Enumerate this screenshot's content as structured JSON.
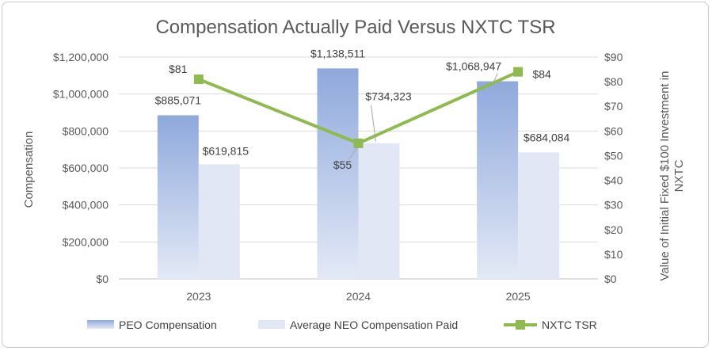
{
  "chart_data": {
    "type": "bar",
    "title": "Compensation Actually Paid Versus NXTC TSR",
    "categories": [
      "2023",
      "2024",
      "2025"
    ],
    "ylabel": "Compensation",
    "y2label_lines": [
      "Value of Initial Fixed $100 Investment in",
      "NXTC"
    ],
    "ylim": [
      0,
      1200000
    ],
    "y2lim": [
      0,
      90
    ],
    "yticks": [
      0,
      200000,
      400000,
      600000,
      800000,
      1000000,
      1200000
    ],
    "yticklabels": [
      "$0",
      "$200,000",
      "$400,000",
      "$600,000",
      "$800,000",
      "$1,000,000",
      "$1,200,000"
    ],
    "y2ticks": [
      0,
      10,
      20,
      30,
      40,
      50,
      60,
      70,
      80,
      90
    ],
    "y2ticklabels": [
      "$0",
      "$10",
      "$20",
      "$30",
      "$40",
      "$50",
      "$60",
      "$70",
      "$80",
      "$90"
    ],
    "grid": true,
    "legend_position": "bottom",
    "series": [
      {
        "name": "PEO Compensation",
        "kind": "bar",
        "axis": "left",
        "values": [
          885071,
          1138511,
          1068947
        ],
        "labels": [
          "$885,071",
          "$1,138,511",
          "$1,068,947"
        ],
        "color_top": "#8fa9dc",
        "color_bottom": "#e3e9f6"
      },
      {
        "name": "Average NEO Compensation Paid",
        "kind": "bar",
        "axis": "left",
        "values": [
          619815,
          734323,
          684084
        ],
        "labels": [
          "$619,815",
          "$734,323",
          "$684,084"
        ],
        "color": "#e1e7f5"
      },
      {
        "name": "NXTC TSR",
        "kind": "line",
        "axis": "right",
        "values": [
          81,
          55,
          84
        ],
        "labels": [
          "$81",
          "$55",
          "$84"
        ],
        "color": "#8fba4f"
      }
    ]
  }
}
